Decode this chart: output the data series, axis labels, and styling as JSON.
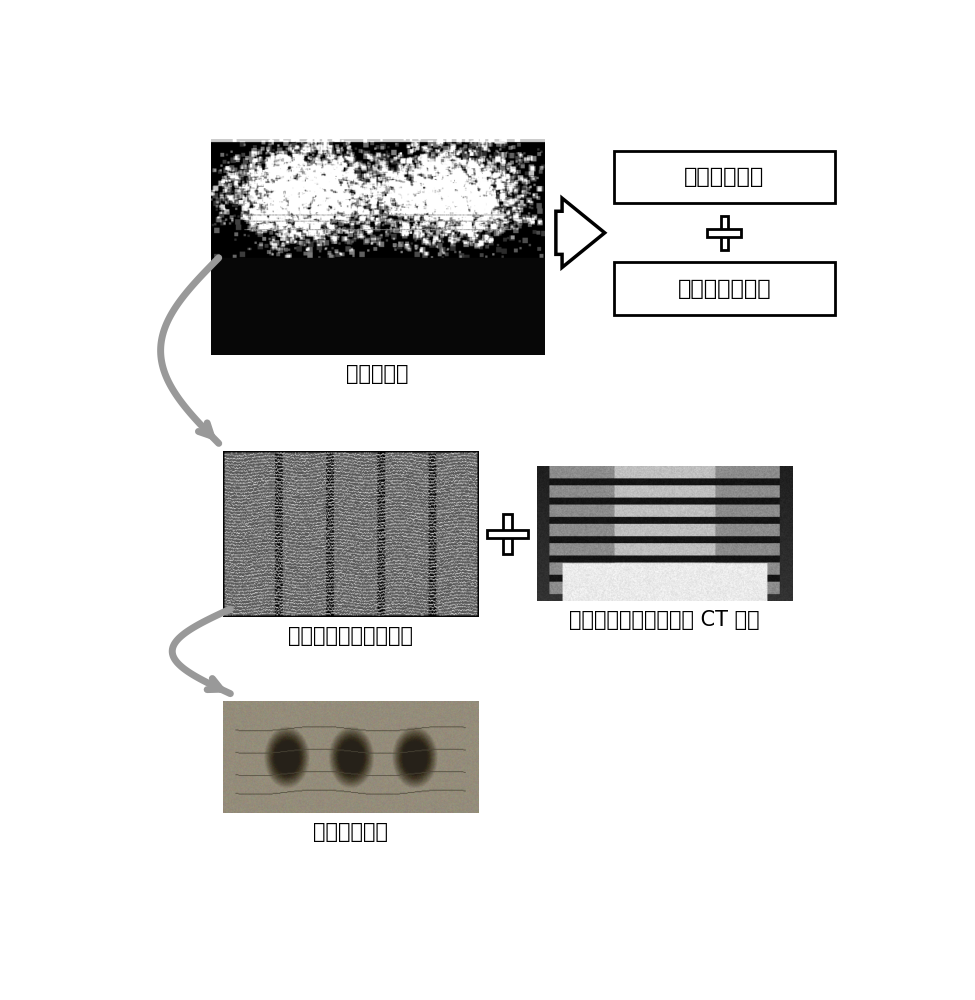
{
  "bg_color": "#ffffff",
  "text_color": "#000000",
  "label_1": "脊柱超声图",
  "label_2": "脊柱冠状面三位重建图",
  "label_3": "其它模式医学图像（如 CT 图）",
  "label_4": "最终融合图像",
  "box_label_1": "图像初步处理",
  "box_label_2": "超声图三维重建",
  "font_size_labels": 15,
  "font_size_boxes": 16
}
